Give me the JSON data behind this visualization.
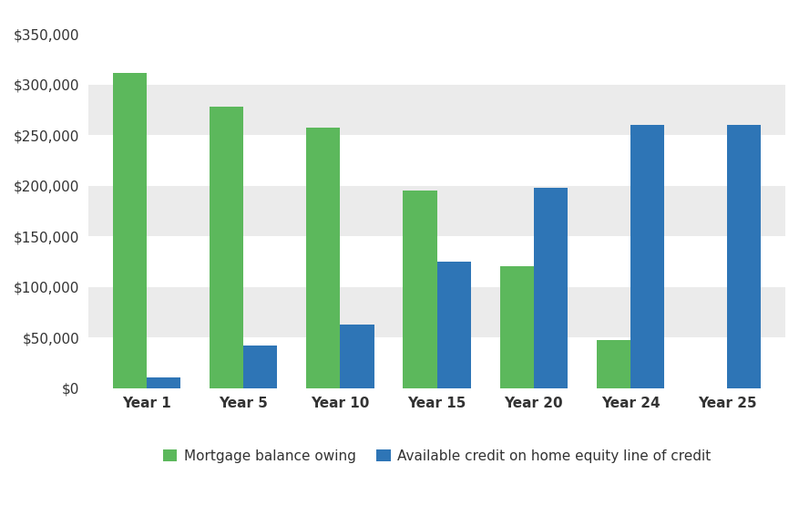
{
  "categories": [
    "Year 1",
    "Year 5",
    "Year 10",
    "Year 15",
    "Year 20",
    "Year 24",
    "Year 25"
  ],
  "mortgage_balance": [
    311000,
    278000,
    257000,
    195000,
    120000,
    47000,
    0
  ],
  "available_credit": [
    10000,
    42000,
    63000,
    125000,
    198000,
    260000,
    260000
  ],
  "green_color": "#5cb85c",
  "blue_color": "#2e75b6",
  "figure_bg_color": "#ffffff",
  "plot_bg_color": "#ffffff",
  "stripe_light": "#ebebeb",
  "stripe_dark": "#d9d9d9",
  "legend_labels": [
    "Mortgage balance owing",
    "Available credit on home equity line of credit"
  ],
  "ylim": [
    0,
    370000
  ],
  "ytick_values": [
    0,
    50000,
    100000,
    150000,
    200000,
    250000,
    300000,
    350000
  ],
  "bar_width": 0.35,
  "tick_fontsize": 11,
  "legend_fontsize": 11
}
